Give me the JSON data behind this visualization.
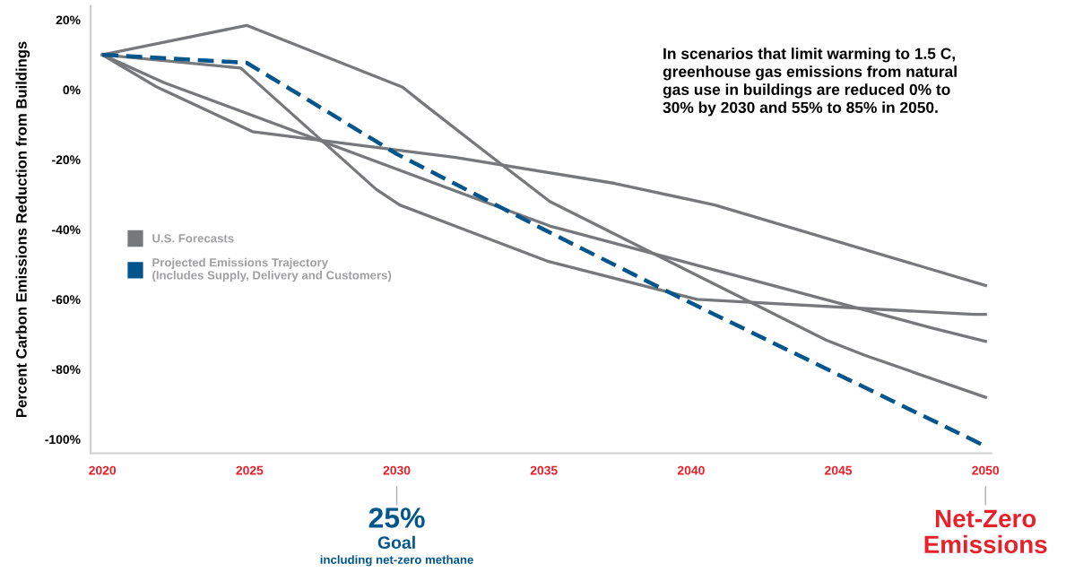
{
  "chart_data": {
    "type": "line",
    "ylabel": "Percent Carbon Emissions Reduction from Buildings",
    "annotations": [
      "In scenarios that limit warming to 1.5 C,\ngreenhouse gas emissions from natural\ngas use in buildings are reduced 0% to\n30% by 2030 and 55% to 85% in 2050.",
      "25%",
      "Goal",
      "including net-zero methane",
      "Net-Zero\nEmissions"
    ],
    "series": [
      {
        "name": "U.S. Forecasts",
        "color": "#77787b",
        "x": [
          2020,
          2024.9,
          2030.2,
          2030.9,
          2033.1,
          2035.2,
          2044.6,
          2045.9,
          2050
        ],
        "values": [
          10,
          18.4,
          0.7,
          -4,
          -18.4,
          -32,
          -71.7,
          -76,
          -88
        ]
      },
      {
        "color": "#77787b",
        "x": [
          2020,
          2024.7,
          2029.3,
          2030.1,
          2035.1,
          2040.2,
          2049.6,
          2050
        ],
        "values": [
          10,
          6.2,
          -28.5,
          -33,
          -49,
          -60,
          -64.3,
          -64.3
        ]
      },
      {
        "color": "#77787b",
        "x": [
          2020,
          2022.1,
          2035.2,
          2048.1,
          2050
        ],
        "values": [
          10,
          2,
          -39,
          -68,
          -72
        ]
      },
      {
        "color": "#77787b",
        "x": [
          2020,
          2021.8,
          2025.1,
          2032,
          2037.4,
          2040.8,
          2050
        ],
        "values": [
          10,
          1,
          -12,
          -19.4,
          -26.8,
          -33,
          -56
        ]
      },
      {
        "name": "Projected Emissions Trajectory\n(Includes Supply, Delivery and Customers)",
        "color": "#00558c",
        "line_style": "dashed",
        "x": [
          2020,
          2024.9,
          2027.1,
          2030,
          2035,
          2039.5,
          2050
        ],
        "values": [
          10,
          7.7,
          -3.5,
          -18.4,
          -40,
          -59,
          -102
        ]
      }
    ],
    "xlim": [
      2019.6,
      2050.2
    ],
    "xticks": [
      2020,
      2025,
      2030,
      2035,
      2040,
      2045,
      2050
    ],
    "ylim": [
      -104,
      24
    ],
    "yticks": [
      {
        "value": -100,
        "label": "-100%"
      },
      {
        "value": -80,
        "label": "-80%"
      },
      {
        "value": -60,
        "label": "-60%"
      },
      {
        "value": -40,
        "label": "-40%"
      },
      {
        "value": -20,
        "label": "-20%"
      },
      {
        "value": 0,
        "label": "0%"
      },
      {
        "value": 20,
        "label": "20%"
      }
    ],
    "grid": false,
    "legend": "center left",
    "marker": "none",
    "line_style": "solid"
  }
}
